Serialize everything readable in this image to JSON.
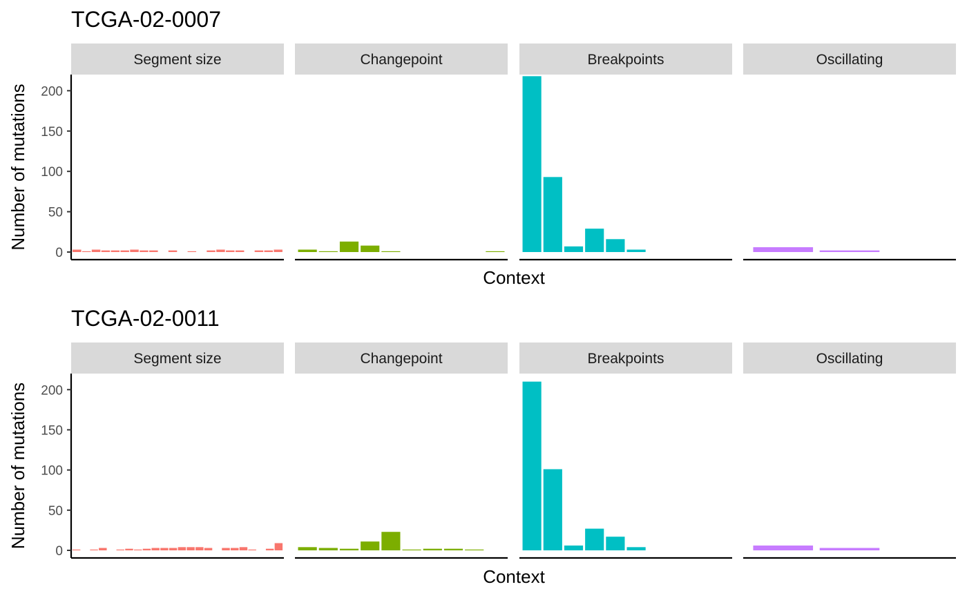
{
  "chart_data": [
    {
      "type": "bar",
      "title": "TCGA-02-0007",
      "xlabel": "Context",
      "ylabel": "Number of mutations",
      "ylim": [
        -7,
        220
      ],
      "yticks": [
        0,
        50,
        100,
        150,
        200
      ],
      "grid": false,
      "facets": [
        {
          "name": "Segment size",
          "color": "#F8766D",
          "values": [
            3,
            1,
            3,
            2,
            2,
            2,
            3,
            2,
            2,
            0,
            2,
            0,
            1,
            0,
            2,
            3,
            2,
            2,
            0,
            2,
            2,
            3
          ]
        },
        {
          "name": "Changepoint",
          "color": "#7CAE00",
          "values": [
            3,
            1,
            13,
            8,
            1,
            0,
            0,
            0,
            0,
            1
          ]
        },
        {
          "name": "Breakpoints",
          "color": "#00BFC4",
          "values": [
            218,
            93,
            7,
            29,
            16,
            3,
            0,
            0,
            0,
            0
          ]
        },
        {
          "name": "Oscillating",
          "color": "#C77CFF",
          "values": [
            6,
            2,
            0
          ]
        }
      ]
    },
    {
      "type": "bar",
      "title": "TCGA-02-0011",
      "xlabel": "Context",
      "ylabel": "Number of mutations",
      "ylim": [
        -7,
        220
      ],
      "yticks": [
        0,
        50,
        100,
        150,
        200
      ],
      "grid": false,
      "facets": [
        {
          "name": "Segment size",
          "color": "#F8766D",
          "values": [
            1,
            0,
            1,
            3,
            0,
            1,
            2,
            1,
            2,
            3,
            3,
            3,
            4,
            4,
            4,
            3,
            0,
            3,
            3,
            4,
            1,
            0,
            2,
            9
          ]
        },
        {
          "name": "Changepoint",
          "color": "#7CAE00",
          "values": [
            4,
            3,
            2,
            11,
            23,
            1,
            2,
            2,
            1,
            0
          ]
        },
        {
          "name": "Breakpoints",
          "color": "#00BFC4",
          "values": [
            210,
            101,
            6,
            27,
            17,
            4,
            0,
            0,
            0,
            0
          ]
        },
        {
          "name": "Oscillating",
          "color": "#C77CFF",
          "values": [
            6,
            3,
            0
          ]
        }
      ]
    }
  ]
}
